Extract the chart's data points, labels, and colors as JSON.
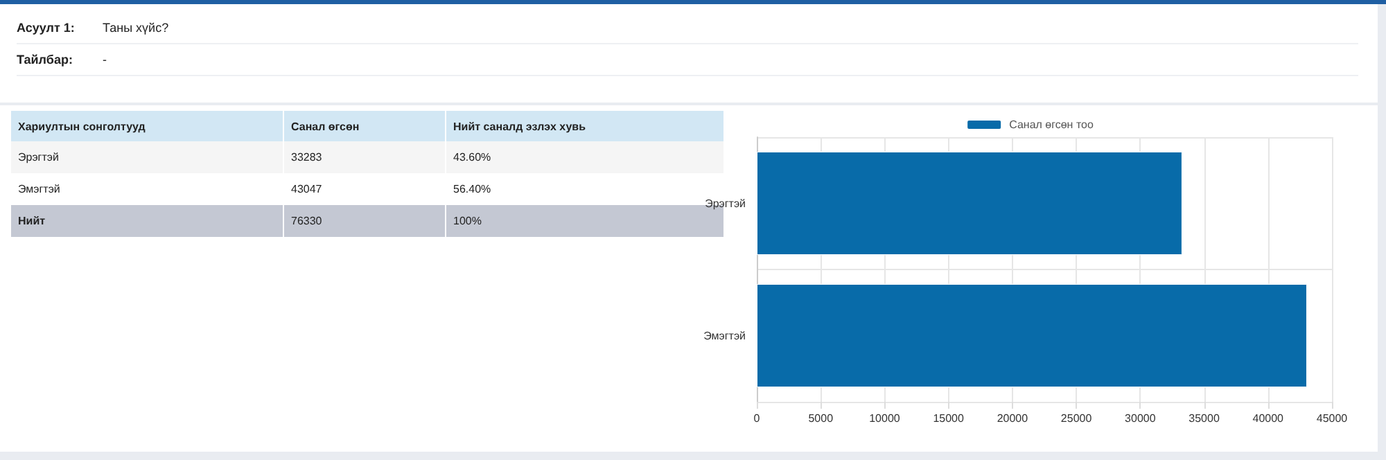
{
  "chart_data": [
    {
      "type": "other",
      "annotations": [
        "Асуулт 1:",
        "Таны хүйс?",
        "Тайлбар:",
        "-"
      ]
    },
    {
      "type": "other",
      "annotations": [
        "Хариултын сонголтууд",
        "Санал өгсөн",
        "Нийт саналд эзлэх хувь",
        "Эрэгтэй",
        "33283",
        "43.60%",
        "Эмэгтэй",
        "43047",
        "56.40%",
        "Нийт",
        "76330",
        "100%"
      ]
    },
    {
      "type": "bar",
      "orientation": "horizontal",
      "categories": [
        "Эрэгтэй",
        "Эмэгтэй"
      ],
      "series": [
        {
          "name": "Санал өгсөн тоо",
          "color": "#086ba9",
          "values": [
            33283,
            43047
          ]
        }
      ],
      "xlim": [
        0,
        45000
      ],
      "xticks": [
        0,
        5000,
        10000,
        15000,
        20000,
        25000,
        30000,
        35000,
        40000,
        45000
      ],
      "grid": true,
      "legend": "top"
    }
  ]
}
